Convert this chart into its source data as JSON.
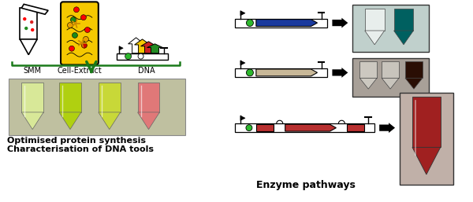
{
  "left_title_line1": "Optimised protein synthesis",
  "left_title_line2": "Characterisation of DNA tools",
  "right_title": "Enzyme pathways",
  "smm_label": "SMM",
  "cell_extract_label": "Cell-Extract",
  "dna_label": "DNA",
  "bg_color": "#ffffff",
  "green_arrow_color": "#1a7a1a",
  "bracket_color": "#1a7a1a",
  "yellow_cell_color": "#f5c800",
  "blue_gene_color": "#1a3a9e",
  "tan_gene_color": "#c8b898",
  "red_gene_color": "#b83030",
  "green_dot_color": "#2db82d",
  "black": "#111111",
  "photo1_bg": "#c8dcd8",
  "photo1_tube1": "#e8f0e8",
  "photo1_tube2": "#006868",
  "photo2_bg": "#b8b0a8",
  "photo2_tube1": "#d8d0c8",
  "photo2_tube2": "#d8d0c8",
  "photo2_tube3": "#3a1808",
  "photo3_bg": "#c8b8b0",
  "photo3_tube": "#a03020",
  "tube_strip_bg": "#c8c8a8",
  "tube1_color": "#d8e890",
  "tube2_color": "#b8d820",
  "tube3_color": "#c8d838",
  "tube4_color": "#e87880"
}
